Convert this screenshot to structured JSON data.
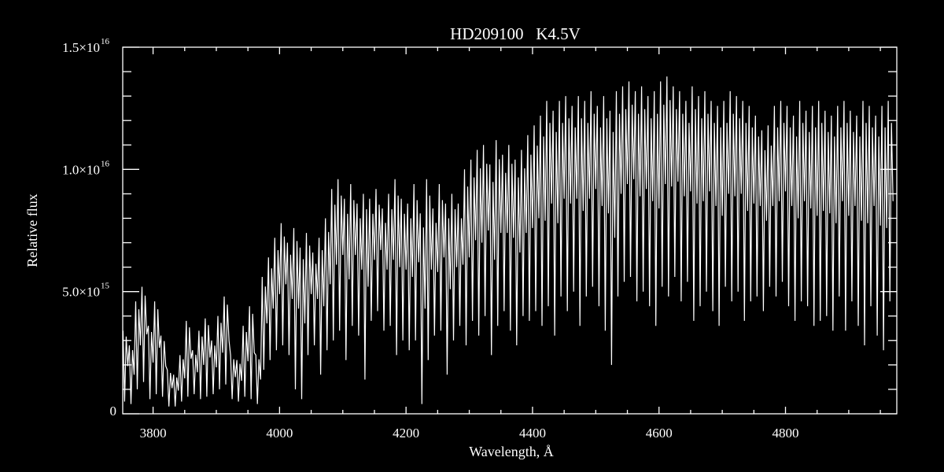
{
  "chart_data": {
    "type": "line",
    "title": "HD209100   K4.5V",
    "xlabel": "Wavelength, Å",
    "ylabel": "Relative flux",
    "xlim": [
      3752,
      4976
    ],
    "ylim": [
      0,
      1.5e+16
    ],
    "grid": false,
    "background": "#000000",
    "line_color": "#ffffff",
    "x_ticks": [
      3800,
      4000,
      4200,
      4400,
      4600,
      4800
    ],
    "x_tick_labels": [
      "3800",
      "4000",
      "4200",
      "4400",
      "4600",
      "4800"
    ],
    "x_minor_step": 50,
    "y_ticks": [
      {
        "value": 0,
        "mantissa": "0",
        "exponent": ""
      },
      {
        "value": 5000000000000000.0,
        "mantissa": "5.0×10",
        "exponent": "15"
      },
      {
        "value": 1e+16,
        "mantissa": "1.0×10",
        "exponent": "16"
      },
      {
        "value": 1.5e+16,
        "mantissa": "1.5×10",
        "exponent": "16"
      }
    ],
    "y_minor_step": 1000000000000000.0,
    "x_start": 3755,
    "x_step": 10,
    "flux_high": [
      3400000000000000.0,
      2800000000000000.0,
      4600000000000000.0,
      5200000000000000.0,
      3600000000000000.0,
      4600000000000000.0,
      3200000000000000.0,
      1800000000000000.0,
      1600000000000000.0,
      2400000000000000.0,
      3800000000000000.0,
      2600000000000000.0,
      3400000000000000.0,
      3900000000000000.0,
      3000000000000000.0,
      4000000000000000.0,
      4800000000000000.0,
      2400000000000000.0,
      2200000000000000.0,
      3600000000000000.0,
      4400000000000000.0,
      2400000000000000.0,
      5600000000000000.0,
      6400000000000000.0,
      7200000000000000.0,
      7800000000000000.0,
      7000000000000000.0,
      7600000000000000.0,
      6800000000000000.0,
      7400000000000000.0,
      6600000000000000.0,
      7200000000000000.0,
      8000000000000000.0,
      9200000000000000.0,
      9600000000000000.0,
      8800000000000000.0,
      9400000000000000.0,
      8600000000000000.0,
      9000000000000000.0,
      8800000000000000.0,
      9200000000000000.0,
      8400000000000000.0,
      9000000000000000.0,
      9600000000000000.0,
      8800000000000000.0,
      8600000000000000.0,
      9400000000000000.0,
      8200000000000000.0,
      9600000000000000.0,
      8400000000000000.0,
      9400000000000000.0,
      8600000000000000.0,
      9000000000000000.0,
      8600000000000000.0,
      1e+16,
      1.04e+16,
      1.08e+16,
      1.1e+16,
      1.02e+16,
      1.12e+16,
      1.06e+16,
      1.1e+16,
      1.04e+16,
      1.08e+16,
      1.14e+16,
      1.18e+16,
      1.22e+16,
      1.28e+16,
      1.24e+16,
      1.28e+16,
      1.3e+16,
      1.26e+16,
      1.3e+16,
      1.28e+16,
      1.32e+16,
      1.26e+16,
      1.3e+16,
      1.24e+16,
      1.32e+16,
      1.34e+16,
      1.36e+16,
      1.32e+16,
      1.34e+16,
      1.3e+16,
      1.32e+16,
      1.36e+16,
      1.38e+16,
      1.34e+16,
      1.32e+16,
      1.28e+16,
      1.34e+16,
      1.3e+16,
      1.32e+16,
      1.28e+16,
      1.26e+16,
      1.28e+16,
      1.32e+16,
      1.3e+16,
      1.28e+16,
      1.26e+16,
      1.22e+16,
      1.16e+16,
      1.18e+16,
      1.26e+16,
      1.28e+16,
      1.26e+16,
      1.22e+16,
      1.28e+16,
      1.24e+16,
      1.26e+16,
      1.28e+16,
      1.24e+16,
      1.22e+16,
      1.26e+16,
      1.28e+16,
      1.24e+16,
      1.22e+16,
      1.28e+16,
      1.26e+16,
      1.22e+16,
      1.26e+16,
      1.28e+16
    ],
    "flux_low": [
      500000000000000.0,
      400000000000000.0,
      1000000000000000.0,
      1300000000000000.0,
      600000000000000.0,
      800000000000000.0,
      700000000000000.0,
      300000000000000.0,
      300000000000000.0,
      500000000000000.0,
      700000000000000.0,
      800000000000000.0,
      600000000000000.0,
      700000000000000.0,
      800000000000000.0,
      1000000000000000.0,
      1200000000000000.0,
      600000000000000.0,
      500000000000000.0,
      700000000000000.0,
      600000000000000.0,
      400000000000000.0,
      1800000000000000.0,
      2200000000000000.0,
      2600000000000000.0,
      2800000000000000.0,
      2400000000000000.0,
      1000000000000000.0,
      600000000000000.0,
      2400000000000000.0,
      2800000000000000.0,
      1600000000000000.0,
      2600000000000000.0,
      3000000000000000.0,
      3400000000000000.0,
      2200000000000000.0,
      3600000000000000.0,
      3200000000000000.0,
      1400000000000000.0,
      3800000000000000.0,
      4200000000000000.0,
      3400000000000000.0,
      3600000000000000.0,
      2400000000000000.0,
      3000000000000000.0,
      2600000000000000.0,
      3000000000000000.0,
      400000000000000.0,
      2200000000000000.0,
      3200000000000000.0,
      3400000000000000.0,
      1600000000000000.0,
      3000000000000000.0,
      3600000000000000.0,
      2800000000000000.0,
      3800000000000000.0,
      3200000000000000.0,
      4000000000000000.0,
      2400000000000000.0,
      3600000000000000.0,
      4200000000000000.0,
      3400000000000000.0,
      2800000000000000.0,
      4000000000000000.0,
      3800000000000000.0,
      4200000000000000.0,
      3600000000000000.0,
      4400000000000000.0,
      3200000000000000.0,
      4800000000000000.0,
      4200000000000000.0,
      5000000000000000.0,
      3600000000000000.0,
      4800000000000000.0,
      5200000000000000.0,
      4400000000000000.0,
      3400000000000000.0,
      2000000000000000.0,
      4800000000000000.0,
      5400000000000000.0,
      5600000000000000.0,
      4600000000000000.0,
      5000000000000000.0,
      4400000000000000.0,
      3600000000000000.0,
      5200000000000000.0,
      4800000000000000.0,
      5600000000000000.0,
      4600000000000000.0,
      5400000000000000.0,
      3800000000000000.0,
      4400000000000000.0,
      5000000000000000.0,
      4200000000000000.0,
      3600000000000000.0,
      5200000000000000.0,
      4600000000000000.0,
      5000000000000000.0,
      3800000000000000.0,
      4600000000000000.0,
      4800000000000000.0,
      4200000000000000.0,
      5200000000000000.0,
      4800000000000000.0,
      5400000000000000.0,
      4400000000000000.0,
      3800000000000000.0,
      4600000000000000.0,
      4400000000000000.0,
      3600000000000000.0,
      3800000000000000.0,
      4000000000000000.0,
      3400000000000000.0,
      4800000000000000.0,
      3400000000000000.0,
      4600000000000000.0,
      3600000000000000.0,
      2800000000000000.0,
      4400000000000000.0,
      3200000000000000.0,
      2600000000000000.0,
      4600000000000000.0
    ]
  }
}
